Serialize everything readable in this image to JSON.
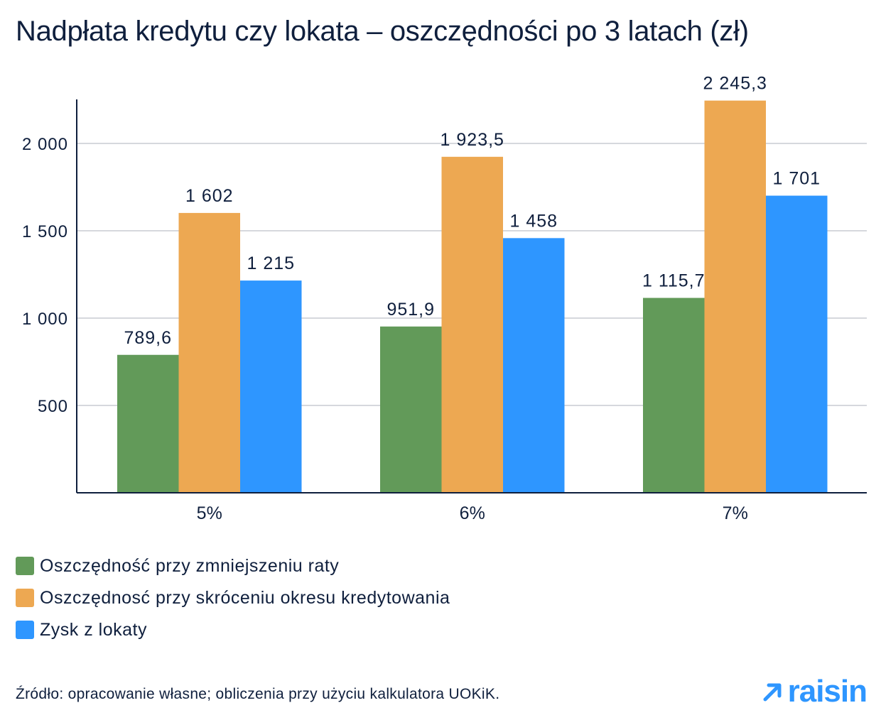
{
  "chart_data": {
    "type": "bar",
    "title": "Nadpłata kredytu czy lokata – oszczędności po 3 latach (zł)",
    "categories": [
      "5%",
      "6%",
      "7%"
    ],
    "series": [
      {
        "name": "Oszczędność przy zmniejszeniu raty",
        "color": "#629a59",
        "values": [
          789.6,
          951.9,
          1115.7
        ],
        "labels": [
          "789,6",
          "951,9",
          "1 115,7"
        ]
      },
      {
        "name": "Oszczędnosć przy skróceniu okresu kredytowania",
        "color": "#eda852",
        "values": [
          1602,
          1923.5,
          2245.3
        ],
        "labels": [
          "1 602",
          "1 923,5",
          "2 245,3"
        ]
      },
      {
        "name": "Zysk z lokaty",
        "color": "#2e96ff",
        "values": [
          1215,
          1458,
          1701
        ],
        "labels": [
          "1 215",
          "1 458",
          "1 701"
        ]
      }
    ],
    "yticks": [
      500,
      1000,
      1500,
      2000
    ],
    "ytick_labels": [
      "500",
      "1 000",
      "1 500",
      "2 000"
    ],
    "ylim": [
      0,
      2250
    ],
    "grid": true,
    "legend_position": "bottom-left"
  },
  "footer": {
    "source": "Źródło: opracowanie własne; obliczenia przy użyciu kalkulatora UOKiK.",
    "logo_text": "raisin",
    "logo_icon": "arrow-up-right-icon"
  }
}
